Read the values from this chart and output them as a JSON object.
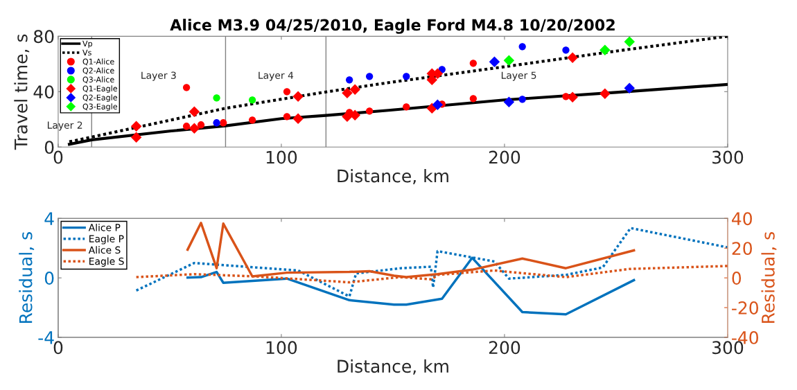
{
  "chart_data": [
    {
      "type": "scatter",
      "title": "Alice M3.9 04/25/2010, Eagle Ford M4.8 10/20/2002",
      "xlabel": "Distance, km",
      "ylabel": "Travel time, s",
      "xlim": [
        0,
        300
      ],
      "xticks": [
        0,
        100,
        200,
        300
      ],
      "ylim": [
        0,
        80
      ],
      "yticks": [
        0,
        40,
        80
      ],
      "grid": false,
      "legend": "top left",
      "series": [
        {
          "name": "Vp",
          "type": "line",
          "color": "#000000",
          "line_style": "solid",
          "x": [
            5,
            15,
            50,
            75,
            100,
            120,
            148,
            200,
            250,
            300
          ],
          "values": [
            2,
            5.2,
            11.5,
            15.3,
            20.5,
            22.8,
            26.5,
            34,
            39.5,
            45.2
          ]
        },
        {
          "name": "Vs",
          "type": "line",
          "color": "#000000",
          "line_style": "dotted",
          "x": [
            5,
            15,
            75,
            120,
            148,
            200,
            250,
            300
          ],
          "values": [
            3.8,
            7.2,
            28,
            39.8,
            46.5,
            58,
            69.3,
            80
          ]
        },
        {
          "name": "Q1-Alice",
          "type": "scatter",
          "marker": "circle",
          "color": "#ff0000",
          "x": [
            57.5,
            57.5,
            64,
            74,
            87,
            102.5,
            102.5,
            130.5,
            139.5,
            156,
            172,
            186,
            186,
            227.5
          ],
          "values": [
            43,
            15,
            16,
            17.5,
            19.5,
            40,
            22,
            25,
            26,
            29,
            31,
            60.5,
            35,
            36.5
          ]
        },
        {
          "name": "Q2-Alice",
          "type": "scatter",
          "marker": "circle",
          "color": "#0000ff",
          "x": [
            71,
            130.5,
            139.5,
            156,
            172,
            208,
            208,
            227.5
          ],
          "values": [
            17.5,
            48.5,
            51,
            51,
            56,
            72.5,
            34.5,
            70
          ]
        },
        {
          "name": "Q3-Alice",
          "type": "scatter",
          "marker": "circle",
          "color": "#00ff00",
          "x": [
            71,
            87
          ],
          "values": [
            35.5,
            34
          ]
        },
        {
          "name": "Q1-Eagle",
          "type": "scatter",
          "marker": "diamond",
          "color": "#ff0000",
          "x": [
            35,
            35,
            61,
            61,
            107.5,
            107.5,
            129.5,
            129.5,
            133,
            133,
            167.5,
            167.5,
            170,
            167.5,
            230.5,
            230.5,
            245
          ],
          "values": [
            15,
            7,
            25.5,
            13.5,
            36.5,
            20.5,
            39,
            22,
            41.5,
            23,
            53,
            48.5,
            53,
            28,
            64.5,
            36,
            38.5
          ]
        },
        {
          "name": "Q2-Eagle",
          "type": "scatter",
          "marker": "diamond",
          "color": "#0000ff",
          "x": [
            170,
            195.5,
            202,
            256
          ],
          "values": [
            30.5,
            61.5,
            32.5,
            42.5
          ]
        },
        {
          "name": "Q3-Eagle",
          "type": "scatter",
          "marker": "diamond",
          "color": "#00ff00",
          "x": [
            202,
            245,
            256
          ],
          "values": [
            62.5,
            70,
            76
          ]
        }
      ],
      "ref_lines": [
        {
          "axis": "x",
          "value": 15,
          "color": "#808080"
        },
        {
          "axis": "x",
          "value": 75,
          "color": "#808080"
        },
        {
          "axis": "x",
          "value": 120,
          "color": "#808080"
        }
      ],
      "annotations": [
        "Layer 2",
        "Layer 3",
        "Layer 4",
        "Layer 5"
      ]
    },
    {
      "type": "line",
      "xlabel": "Distance, km",
      "ylabel": "Residual, s",
      "y2label": "Residual, s",
      "xlim": [
        0,
        300
      ],
      "xticks": [
        0,
        100,
        200,
        300
      ],
      "ylim": [
        -4,
        4
      ],
      "yticks": [
        -4,
        0,
        4
      ],
      "y2lim": [
        -40,
        40
      ],
      "y2ticks": [
        -40,
        -20,
        0,
        20,
        40
      ],
      "grid": false,
      "legend": "top left",
      "series": [
        {
          "name": "Alice P",
          "color": "#0072bd",
          "line_style": "solid",
          "x": [
            58,
            64,
            71,
            74,
            102.5,
            130.5,
            150.5,
            156,
            172,
            185.5,
            208,
            227.5,
            258
          ],
          "values": [
            0.02,
            0.05,
            0.4,
            -0.33,
            -0.05,
            -1.5,
            -1.8,
            -1.8,
            -1.4,
            1.35,
            -2.3,
            -2.45,
            -0.15
          ]
        },
        {
          "name": "Eagle P",
          "color": "#0072bd",
          "line_style": "dotted",
          "x": [
            35,
            61,
            88.5,
            107.5,
            130.5,
            133.5,
            153.5,
            167,
            168,
            170,
            195.5,
            202,
            227.5,
            244,
            256.5,
            300
          ],
          "values": [
            -0.85,
            1,
            0.7,
            0.5,
            -1.25,
            0.3,
            0.65,
            0.75,
            -0.65,
            1.8,
            1.1,
            -0.05,
            0.2,
            0.7,
            3.35,
            2.05
          ]
        },
        {
          "name": "Alice S",
          "color": "#d95319",
          "line_style": "solid",
          "axis": "y2",
          "x": [
            58,
            64,
            71,
            74,
            87,
            102.5,
            130.5,
            139.5,
            150.5,
            156,
            170,
            185.5,
            208,
            227.5,
            258
          ],
          "values": [
            19,
            37,
            6.5,
            36.5,
            1,
            3.5,
            4,
            4.5,
            1.5,
            0.5,
            2.5,
            5.5,
            13,
            6.5,
            18.5
          ]
        },
        {
          "name": "Eagle S",
          "color": "#d95319",
          "line_style": "dotted",
          "axis": "y2",
          "x": [
            35,
            61,
            88.5,
            130.5,
            153,
            167.5,
            170,
            195.5,
            202,
            227.5,
            256,
            300
          ],
          "values": [
            0.5,
            2.5,
            1,
            -3,
            0.5,
            -1,
            2,
            5,
            4,
            0.5,
            6,
            8
          ]
        }
      ]
    }
  ]
}
